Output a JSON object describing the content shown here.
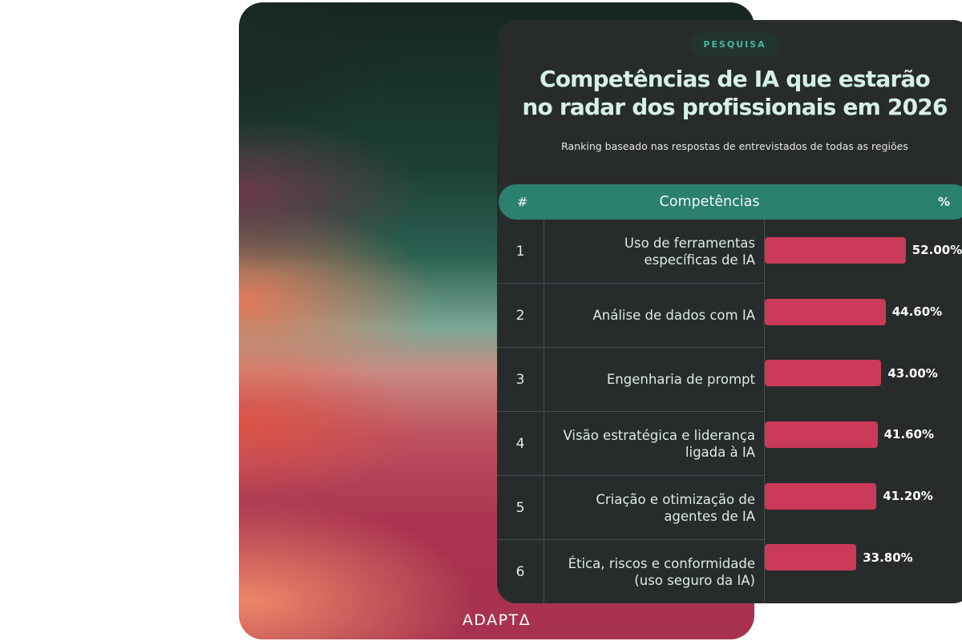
{
  "badge": {
    "label": "PESQUISA"
  },
  "title": {
    "line1": "Competências de IA que estarão",
    "line2": "no radar dos profissionais em 2026"
  },
  "subtitle": "Ranking baseado nas respostas de entrevistados de todas as regiões",
  "table": {
    "headers": {
      "rank": "#",
      "competency": "Competências",
      "percent": "%"
    },
    "rows": [
      {
        "rank": "1",
        "label": "Uso de ferramentas\nespecíficas de IA",
        "value": 52.0,
        "value_label": "52.00%"
      },
      {
        "rank": "2",
        "label": "Análise de dados com IA",
        "value": 44.6,
        "value_label": "44.60%"
      },
      {
        "rank": "3",
        "label": "Engenharia de prompt",
        "value": 43.0,
        "value_label": "43.00%"
      },
      {
        "rank": "4",
        "label": "Visão estratégica e liderança\nligada à IA",
        "value": 41.6,
        "value_label": "41.60%"
      },
      {
        "rank": "5",
        "label": "Criação e otimização de\nagentes de IA",
        "value": 41.2,
        "value_label": "41.20%"
      },
      {
        "rank": "6",
        "label": "Ética, riscos e conformidade\n(uso seguro da IA)",
        "value": 33.8,
        "value_label": "33.80%"
      }
    ]
  },
  "footer": {
    "brand": "ADAPTΔ"
  },
  "colors": {
    "bar_fill": "#cb3a59",
    "header_pill": "#2b8070",
    "card_background": "#282b2c",
    "title_text": "#d6f1e4",
    "badge_text": "#45b69a",
    "badge_background": "#233430",
    "divider": "#454d4d",
    "gradient_top_green": "#1c4036",
    "gradient_sage": "#7ba795",
    "gradient_crimson": "#a73250",
    "gradient_orange": "#eb7858"
  },
  "chart_data": {
    "type": "bar",
    "orientation": "horizontal",
    "title": "Competências de IA que estarão no radar dos profissionais em 2026",
    "subtitle": "Ranking baseado nas respostas de entrevistados de todas as regiões",
    "badge": "PESQUISA",
    "categories": [
      "Uso de ferramentas específicas de IA",
      "Análise de dados com IA",
      "Engenharia de prompt",
      "Visão estratégica e liderança ligada à IA",
      "Criação e otimização de agentes de IA",
      "Ética, riscos e conformidade (uso seguro da IA)"
    ],
    "values": [
      52.0,
      44.6,
      43.0,
      41.6,
      41.2,
      33.8
    ],
    "value_labels": [
      "52.00%",
      "44.60%",
      "43.00%",
      "41.60%",
      "41.20%",
      "33.80%"
    ],
    "xlabel": "%",
    "ylabel": "Competências",
    "xlim": [
      0,
      76
    ],
    "grid": false,
    "legend": false,
    "bar_color": "#cb3a59",
    "source_brand": "ADAPTΔ"
  }
}
